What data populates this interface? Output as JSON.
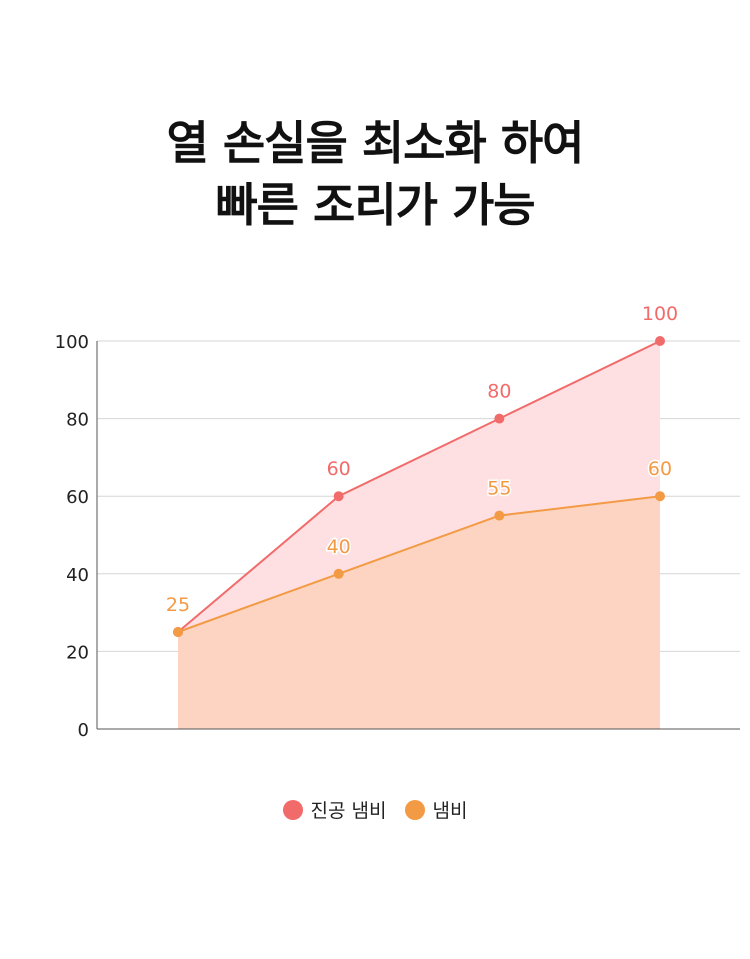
{
  "title": {
    "line1": "열 손실을 최소화 하여",
    "line2": "빠른 조리가 가능"
  },
  "chart_data": {
    "type": "area",
    "categories": [
      "",
      "",
      "",
      ""
    ],
    "ylim": [
      0,
      100
    ],
    "yticks": [
      0,
      20,
      40,
      60,
      80,
      100
    ],
    "grid": true,
    "legend_position": "bottom-center",
    "series": [
      {
        "name": "진공 냄비",
        "values": [
          25,
          60,
          80,
          100
        ],
        "color": "#F26B6B",
        "fill": "#FFE0E2"
      },
      {
        "name": "냄비",
        "values": [
          25,
          40,
          55,
          60
        ],
        "color": "#F39A45",
        "fill": "#FCD4C1"
      }
    ]
  }
}
